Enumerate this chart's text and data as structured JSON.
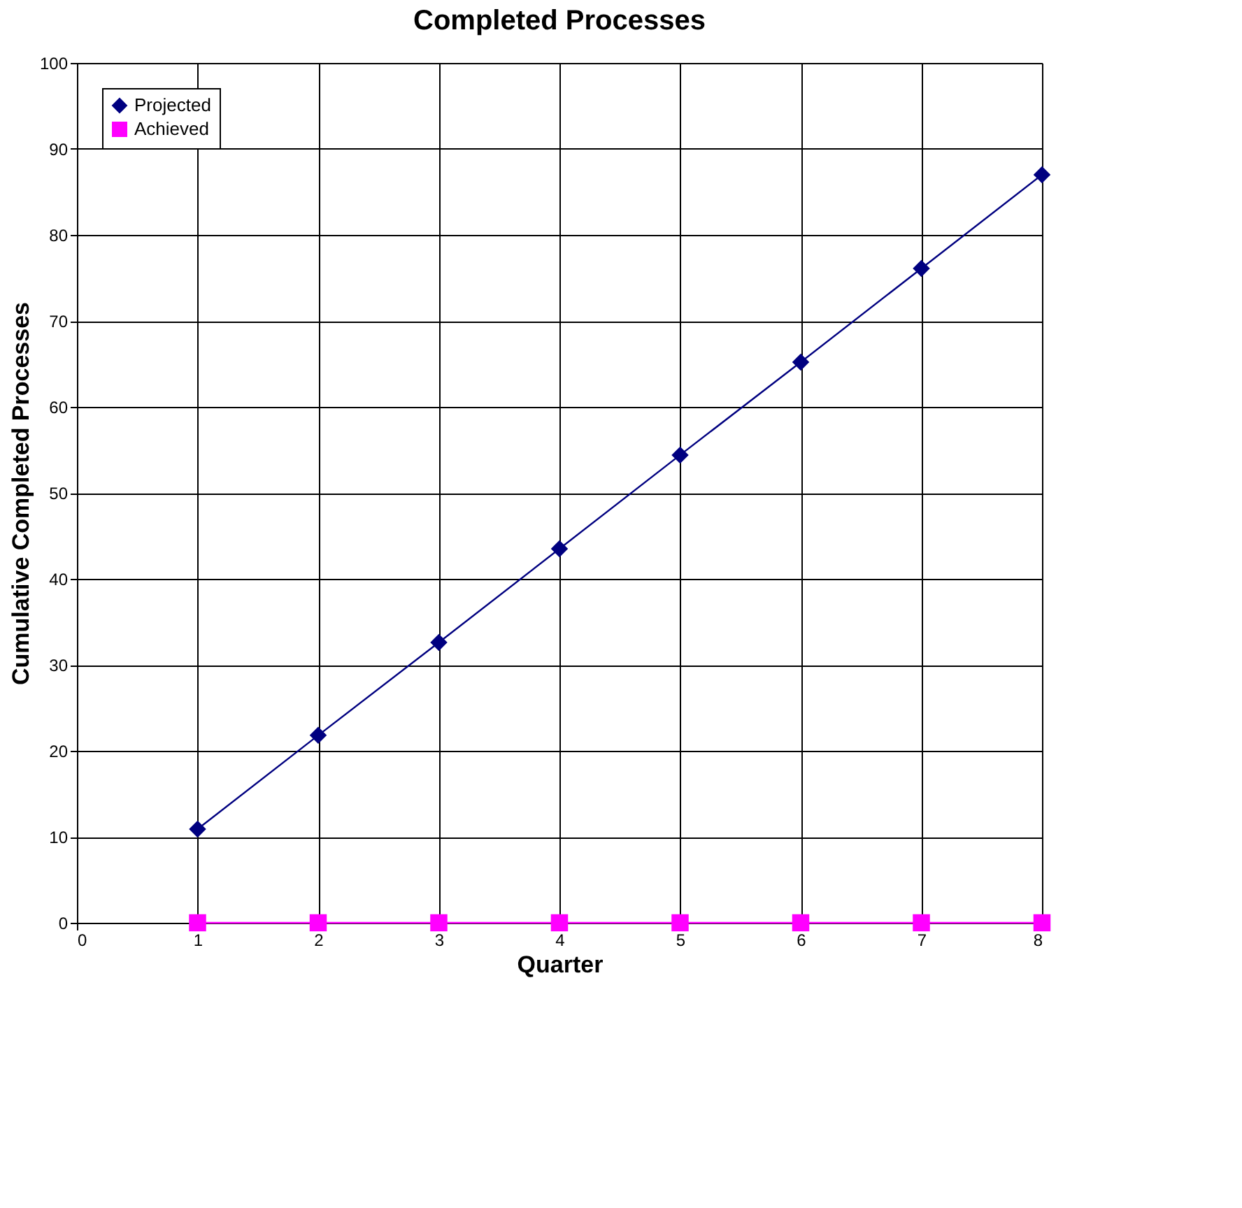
{
  "chart_data": {
    "type": "line",
    "title": "Completed Processes",
    "xlabel": "Quarter",
    "ylabel": "Cumulative Completed Processes",
    "x": [
      1,
      2,
      3,
      4,
      5,
      6,
      7,
      8
    ],
    "series": [
      {
        "name": "Projected",
        "color": "#000080",
        "marker": "diamond",
        "values": [
          10.9,
          21.8,
          32.6,
          43.5,
          54.4,
          65.2,
          76.1,
          87
        ]
      },
      {
        "name": "Achieved",
        "color": "#ff00ff",
        "marker": "square",
        "values": [
          0,
          0,
          0,
          0,
          0,
          0,
          0,
          0
        ]
      }
    ],
    "xlim": [
      0,
      8
    ],
    "xticks": [
      0,
      1,
      2,
      3,
      4,
      5,
      6,
      7,
      8
    ],
    "ylim": [
      0,
      100
    ],
    "yticks": [
      0,
      10,
      20,
      30,
      40,
      50,
      60,
      70,
      80,
      90,
      100
    ],
    "grid": true,
    "legend": "top left",
    "line_style": "solid"
  }
}
